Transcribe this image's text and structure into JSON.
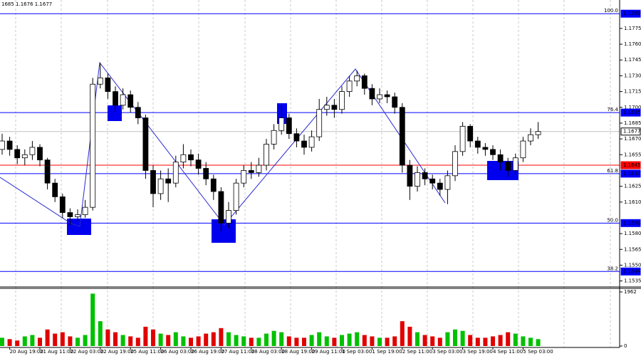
{
  "chart_data": {
    "type": "candlestick",
    "header": "1685 1.1676 1.1677",
    "categories": [
      null,
      "20 Aug 19:00",
      null,
      null,
      null,
      "21 Aug 11:00",
      null,
      null,
      null,
      "22 Aug 03:00",
      null,
      null,
      null,
      "22 Aug 19:00",
      null,
      null,
      null,
      "25 Aug 11:00",
      null,
      null,
      null,
      "26 Aug 03:00",
      null,
      null,
      null,
      "26 Aug 19:00",
      null,
      null,
      null,
      "27 Aug 11:00",
      null,
      null,
      null,
      "28 Aug 03:00",
      null,
      null,
      null,
      "28 Aug 19:00",
      null,
      null,
      null,
      "29 Aug 11:00",
      null,
      null,
      null,
      "1 Sep 03:00",
      null,
      null,
      null,
      "1 Sep 19:00",
      null,
      null,
      null,
      "2 Sep 11:00",
      null,
      null,
      null,
      "3 Sep 03:00",
      null,
      null,
      null,
      "3 Sep 19:00",
      null,
      null,
      null,
      "4 Sep 11:00",
      null,
      null,
      null,
      "5 Sep 03:00",
      null,
      null
    ],
    "open": [
      1.166,
      1.1668,
      1.166,
      1.1652,
      1.1655,
      1.1662,
      1.165,
      1.1628,
      1.1615,
      1.16,
      1.1596,
      1.1598,
      1.1605,
      1.1722,
      1.1728,
      1.1715,
      1.1702,
      1.1712,
      1.17,
      1.169,
      1.164,
      1.1618,
      1.1632,
      1.1628,
      1.1648,
      1.1655,
      1.165,
      1.1642,
      1.1632,
      1.162,
      1.159,
      1.1602,
      1.1628,
      1.164,
      1.1638,
      1.1645,
      1.1665,
      1.1678,
      1.169,
      1.1675,
      1.1668,
      1.1662,
      1.1672,
      1.1698,
      1.1702,
      1.1698,
      1.1715,
      1.1725,
      1.173,
      1.1718,
      1.1708,
      1.1712,
      1.171,
      1.17,
      1.1645,
      1.1625,
      1.1638,
      1.1632,
      1.1628,
      1.1622,
      1.1635,
      1.1658,
      1.1682,
      1.1668,
      1.1662,
      1.166,
      1.1655,
      1.1648,
      1.164,
      1.1652,
      1.1668,
      1.1674
    ],
    "high": [
      1.1675,
      1.1672,
      1.1664,
      1.166,
      1.1668,
      1.1665,
      1.1652,
      1.1632,
      1.1618,
      1.1604,
      1.1603,
      1.1612,
      1.1728,
      1.1742,
      1.1732,
      1.172,
      1.1718,
      1.1716,
      1.1705,
      1.1693,
      1.1645,
      1.164,
      1.1642,
      1.1654,
      1.1665,
      1.166,
      1.1656,
      1.1648,
      1.1636,
      1.1624,
      1.161,
      1.1632,
      1.1645,
      1.1648,
      1.1652,
      1.167,
      1.1684,
      1.1702,
      1.1694,
      1.168,
      1.1674,
      1.1678,
      1.1708,
      1.171,
      1.1708,
      1.172,
      1.173,
      1.1735,
      1.1732,
      1.1722,
      1.1718,
      1.1716,
      1.1714,
      1.1704,
      1.165,
      1.1644,
      1.1642,
      1.1636,
      1.1632,
      1.164,
      1.1664,
      1.1686,
      1.1684,
      1.1672,
      1.1666,
      1.1664,
      1.166,
      1.1652,
      1.1656,
      1.1672,
      1.168,
      1.1686
    ],
    "low": [
      1.1655,
      1.1654,
      1.1646,
      1.1645,
      1.165,
      1.1644,
      1.1622,
      1.161,
      1.1595,
      1.1588,
      1.1592,
      1.1595,
      1.1602,
      1.1718,
      1.1708,
      1.1696,
      1.1698,
      1.1695,
      1.1684,
      1.1632,
      1.1605,
      1.1612,
      1.161,
      1.1624,
      1.1642,
      1.1644,
      1.1636,
      1.1626,
      1.1612,
      1.1582,
      1.1585,
      1.1598,
      1.1624,
      1.1632,
      1.1634,
      1.164,
      1.166,
      1.1674,
      1.167,
      1.1662,
      1.1655,
      1.1658,
      1.1668,
      1.1692,
      1.169,
      1.1694,
      1.171,
      1.172,
      1.1712,
      1.1702,
      1.1704,
      1.1704,
      1.1694,
      1.1638,
      1.1612,
      1.162,
      1.1626,
      1.1622,
      1.1616,
      1.1608,
      1.163,
      1.1654,
      1.1662,
      1.1656,
      1.1654,
      1.165,
      1.164,
      1.1634,
      1.1636,
      1.1648,
      1.1664,
      1.167
    ],
    "close": [
      1.1668,
      1.166,
      1.1652,
      1.1655,
      1.1662,
      1.165,
      1.1628,
      1.1615,
      1.16,
      1.1596,
      1.1598,
      1.1605,
      1.1722,
      1.1728,
      1.1715,
      1.1702,
      1.1712,
      1.17,
      1.169,
      1.164,
      1.1618,
      1.1632,
      1.1628,
      1.1648,
      1.1655,
      1.165,
      1.1642,
      1.1632,
      1.162,
      1.159,
      1.1602,
      1.1628,
      1.164,
      1.1638,
      1.1645,
      1.1665,
      1.1678,
      1.169,
      1.1675,
      1.1668,
      1.1662,
      1.1672,
      1.1698,
      1.1702,
      1.1698,
      1.1715,
      1.1725,
      1.173,
      1.1718,
      1.1708,
      1.1712,
      1.171,
      1.17,
      1.1645,
      1.1625,
      1.1638,
      1.1632,
      1.1628,
      1.1622,
      1.1635,
      1.1658,
      1.1682,
      1.1668,
      1.1662,
      1.166,
      1.1655,
      1.1648,
      1.164,
      1.1652,
      1.1668,
      1.1674,
      1.1677
    ],
    "up_color": "#ffffff",
    "down_color": "#000000",
    "ylim": [
      1.153,
      1.1802
    ],
    "yticks": [
      1.1775,
      {
        "value": 1.176,
        "label": "1.1760"
      },
      1.1745,
      {
        "value": 1.173,
        "label": "1.1730"
      },
      1.1715,
      {
        "value": 1.17,
        "label": "1.1700"
      },
      1.1685,
      {
        "value": 1.167,
        "label": "1.1670"
      },
      1.1655,
      1.1625,
      {
        "value": 1.161,
        "label": "1.1610"
      },
      {
        "value": 1.158,
        "label": "1.1580"
      },
      1.1565,
      {
        "value": 1.155,
        "label": "1.1550"
      },
      1.1535
    ],
    "levels": [
      {
        "price": 1.1789,
        "fibo": "100.0",
        "color": "#0000ff",
        "text_color": "#ffffff"
      },
      {
        "price": 1.1695,
        "fibo": "76.4",
        "color": "#0000ff",
        "text_color": "#ffffff"
      },
      {
        "price": 1.1637,
        "fibo": "61.8",
        "color": "#0000ff",
        "text_color": "#ffffff"
      },
      {
        "price": {
          "value": 1.159,
          "label": "1.1590"
        },
        "fibo": "50.0",
        "color": "#0000ff",
        "text_color": "#ffffff"
      },
      {
        "price": 1.1544,
        "fibo": "38.2",
        "color": "#0000ff",
        "text_color": "#ffffff"
      },
      {
        "price": 1.1645,
        "color": "#ff0000",
        "text_color": "#ffffff"
      },
      {
        "price": 1.1677,
        "color": "#c0c0c0",
        "text_color": "#000000"
      }
    ],
    "volume": {
      "values": [
        300,
        250,
        200,
        350,
        400,
        300,
        600,
        450,
        500,
        350,
        300,
        400,
        1900,
        900,
        600,
        500,
        400,
        350,
        300,
        700,
        600,
        450,
        400,
        500,
        350,
        300,
        350,
        450,
        500,
        650,
        500,
        400,
        350,
        300,
        300,
        450,
        550,
        500,
        350,
        300,
        300,
        400,
        500,
        350,
        300,
        400,
        450,
        500,
        400,
        350,
        300,
        300,
        350,
        900,
        700,
        500,
        400,
        350,
        300,
        500,
        600,
        550,
        400,
        300,
        300,
        350,
        400,
        500,
        450,
        350,
        300,
        250
      ],
      "ylim": [
        0,
        1962
      ],
      "yticks": [
        1962,
        0
      ],
      "up_color": "#00c000",
      "down_color": "#e00000"
    }
  }
}
